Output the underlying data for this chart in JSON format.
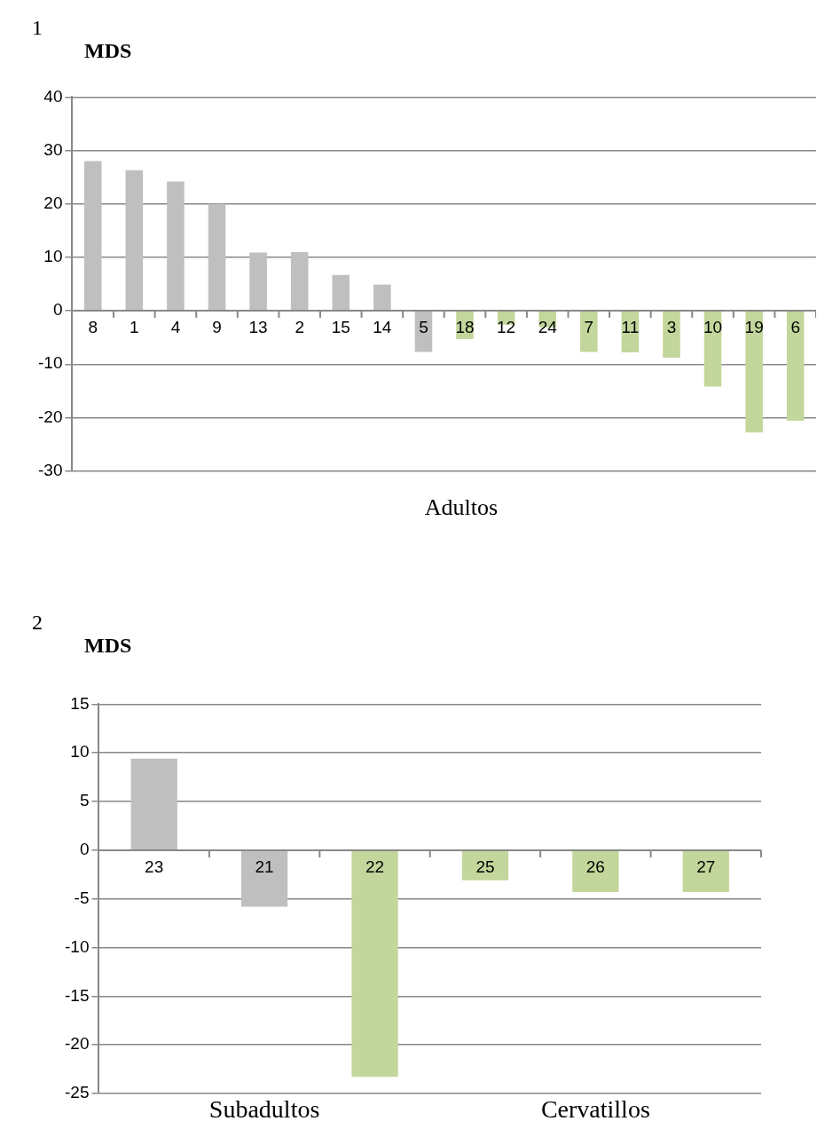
{
  "chart_data": [
    {
      "type": "bar",
      "title": "MDS",
      "xlabel": "Adultos",
      "annotations": [
        "1"
      ],
      "categories": [
        "8",
        "1",
        "4",
        "9",
        "13",
        "2",
        "15",
        "14",
        "5",
        "18",
        "12",
        "24",
        "7",
        "11",
        "3",
        "10",
        "19",
        "6"
      ],
      "values": [
        28.0,
        26.3,
        24.2,
        20.0,
        10.9,
        11.0,
        6.7,
        4.9,
        -7.7,
        -5.3,
        -2.6,
        -3.1,
        -7.7,
        -7.8,
        -8.8,
        -14.2,
        -22.8,
        -20.6
      ],
      "colors": [
        "#bfbfbf",
        "#bfbfbf",
        "#bfbfbf",
        "#bfbfbf",
        "#bfbfbf",
        "#bfbfbf",
        "#bfbfbf",
        "#bfbfbf",
        "#bfbfbf",
        "#c3d69b",
        "#c3d69b",
        "#c3d69b",
        "#c3d69b",
        "#c3d69b",
        "#c3d69b",
        "#c3d69b",
        "#c3d69b",
        "#c3d69b"
      ],
      "ylim": [
        -30,
        40
      ],
      "yticks": [
        -30,
        -20,
        -10,
        0,
        10,
        20,
        30,
        40
      ],
      "grid": "y"
    },
    {
      "type": "bar",
      "title": "MDS",
      "annotations": [
        "2",
        "Subadultos",
        "Cervatillos"
      ],
      "categories": [
        "23",
        "21",
        "22",
        "25",
        "26",
        "27"
      ],
      "values": [
        9.4,
        -5.8,
        -23.3,
        -3.1,
        -4.3,
        -4.3
      ],
      "colors": [
        "#bfbfbf",
        "#bfbfbf",
        "#c3d69b",
        "#c3d69b",
        "#c3d69b",
        "#c3d69b"
      ],
      "ylim": [
        -25,
        15
      ],
      "yticks": [
        -25,
        -20,
        -15,
        -10,
        -5,
        0,
        5,
        10,
        15
      ],
      "grid": "y"
    }
  ]
}
